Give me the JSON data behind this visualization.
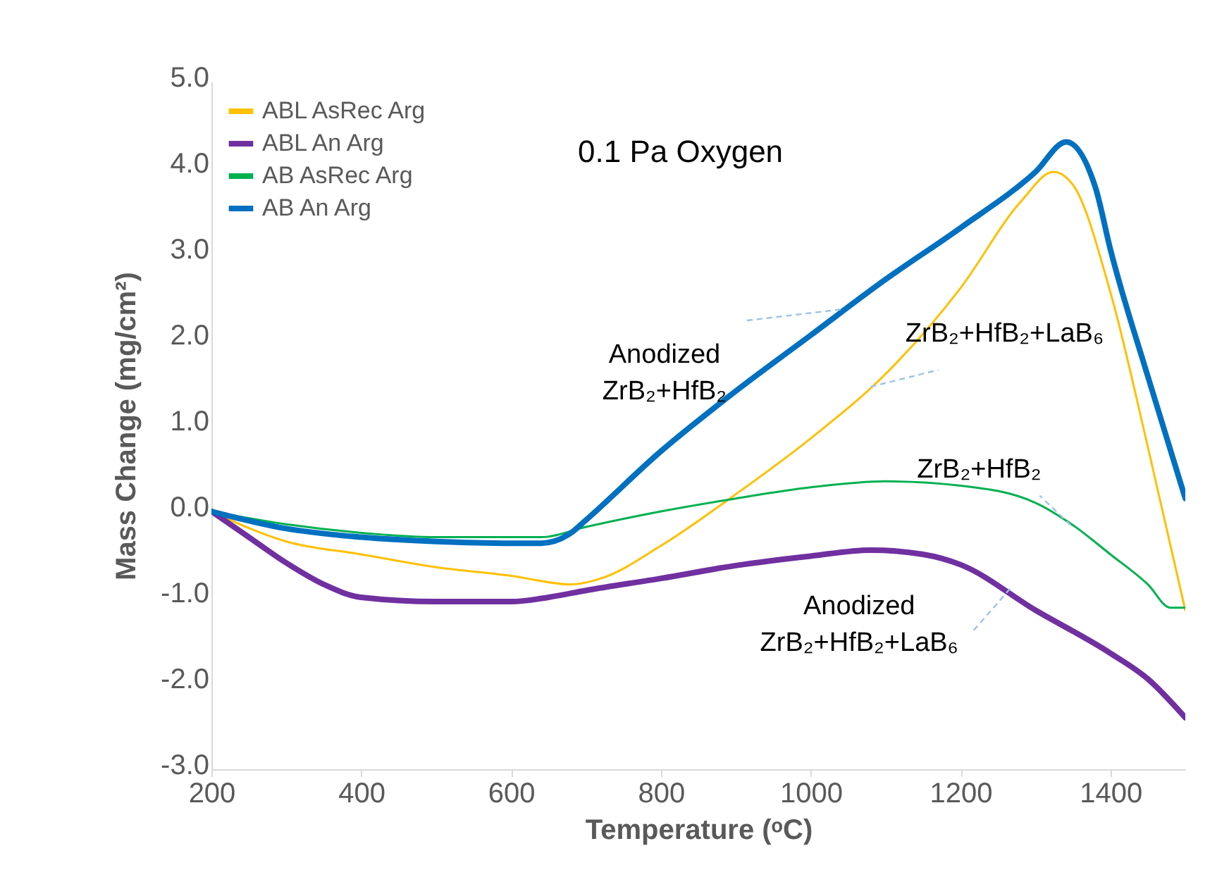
{
  "chart_data": {
    "type": "line",
    "title": "0.1 Pa Oxygen",
    "xlabel": "Temperature (ᵒC)",
    "ylabel": "Mass Change (mg/cm²)",
    "xlim": [
      200,
      1500
    ],
    "xticks": [
      200,
      400,
      600,
      800,
      1000,
      1200,
      1400
    ],
    "ylim": [
      -3,
      5
    ],
    "yticks": [
      {
        "value": -3,
        "label": "-3.0"
      },
      {
        "value": -2,
        "label": "-2.0"
      },
      {
        "value": -1,
        "label": "-1.0"
      },
      {
        "value": 0,
        "label": "0.0"
      },
      {
        "value": 1,
        "label": "1.0"
      },
      {
        "value": 2,
        "label": "2.0"
      },
      {
        "value": 3,
        "label": "3.0"
      },
      {
        "value": 4,
        "label": "4.0"
      },
      {
        "value": 5,
        "label": "5.0"
      }
    ],
    "grid": false,
    "legend": "top left",
    "marker": "none",
    "line_style": "solid",
    "series": [
      {
        "name": "ABL AsRec Arg",
        "color": "#ffc000",
        "x": [
          200,
          300,
          400,
          500,
          600,
          680,
          720,
          800,
          900,
          1000,
          1100,
          1200,
          1280,
          1324,
          1350,
          1400,
          1450,
          1500
        ],
        "values": [
          0,
          -0.35,
          -0.5,
          -0.65,
          -0.75,
          -0.85,
          -0.78,
          -0.4,
          0.2,
          0.85,
          1.6,
          2.6,
          3.6,
          3.95,
          3.8,
          2.55,
          0.75,
          -1.15
        ]
      },
      {
        "name": "ABL An Arg",
        "color": "#7030a0",
        "x": [
          200,
          250,
          300,
          350,
          400,
          500,
          600,
          650,
          700,
          800,
          900,
          1000,
          1080,
          1150,
          1200,
          1300,
          1400,
          1450,
          1500
        ],
        "values": [
          0,
          -0.3,
          -0.6,
          -0.85,
          -1.0,
          -1.05,
          -1.05,
          -1.0,
          -0.92,
          -0.78,
          -0.63,
          -0.52,
          -0.45,
          -0.5,
          -0.62,
          -1.15,
          -1.65,
          -1.95,
          -2.4
        ]
      },
      {
        "name": "AB AsRec Arg",
        "color": "#00b050",
        "x": [
          200,
          300,
          400,
          500,
          640,
          700,
          800,
          900,
          1000,
          1100,
          1200,
          1300,
          1350,
          1400,
          1450,
          1480,
          1500
        ],
        "values": [
          0,
          -0.15,
          -0.25,
          -0.3,
          -0.3,
          -0.18,
          0,
          0.15,
          0.28,
          0.35,
          0.3,
          0.1,
          -0.16,
          -0.5,
          -0.85,
          -1.12,
          -1.12
        ]
      },
      {
        "name": "AB An Arg",
        "color": "#0070c0",
        "x": [
          200,
          300,
          400,
          500,
          600,
          640,
          680,
          700,
          800,
          900,
          1000,
          1100,
          1200,
          1300,
          1341,
          1380,
          1400,
          1450,
          1500
        ],
        "values": [
          0,
          -0.2,
          -0.3,
          -0.35,
          -0.37,
          -0.37,
          -0.25,
          -0.1,
          0.7,
          1.4,
          2.05,
          2.7,
          3.3,
          3.95,
          4.3,
          3.77,
          3.05,
          1.57,
          0.15
        ]
      }
    ],
    "annotations": [
      {
        "text": "Anodized\nZrB₂+HfB₂",
        "x": 1040,
        "y": 2.35
      },
      {
        "text": "ZrB₂+HfB₂+LaB₆",
        "x": 1080,
        "y": 1.45
      },
      {
        "text": "ZrB₂+HfB₂",
        "x": 1347,
        "y": -0.16
      },
      {
        "text": "Anodized\nZrB₂+HfB₂+LaB₆",
        "x": 1266,
        "y": -0.9
      }
    ]
  }
}
